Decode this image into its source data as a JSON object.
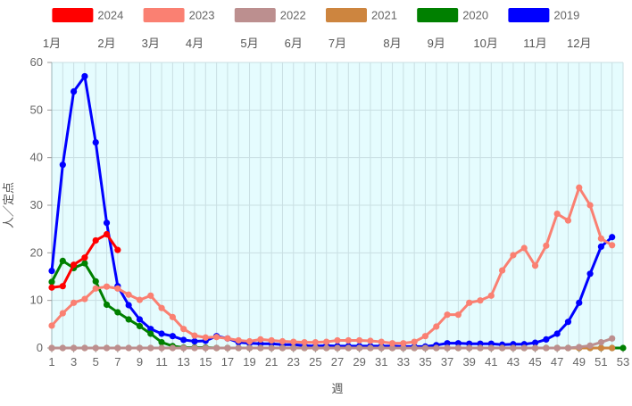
{
  "chart_data": {
    "type": "line",
    "xlabel": "週",
    "ylabel": "人／定点",
    "xlim": [
      1,
      53
    ],
    "ylim": [
      0,
      60
    ],
    "y_ticks": [
      0,
      10,
      20,
      30,
      40,
      50,
      60
    ],
    "x_ticks": [
      1,
      3,
      5,
      7,
      9,
      11,
      13,
      15,
      17,
      19,
      21,
      23,
      25,
      27,
      29,
      31,
      33,
      35,
      37,
      39,
      41,
      43,
      45,
      47,
      49,
      51,
      53
    ],
    "grid": true,
    "legend_position": "top",
    "month_labels": [
      {
        "label": "1月",
        "week": 1
      },
      {
        "label": "2月",
        "week": 6
      },
      {
        "label": "3月",
        "week": 10
      },
      {
        "label": "4月",
        "week": 14
      },
      {
        "label": "5月",
        "week": 19
      },
      {
        "label": "6月",
        "week": 23
      },
      {
        "label": "7月",
        "week": 27
      },
      {
        "label": "8月",
        "week": 32
      },
      {
        "label": "9月",
        "week": 36
      },
      {
        "label": "10月",
        "week": 40.5
      },
      {
        "label": "11月",
        "week": 45
      },
      {
        "label": "12月",
        "week": 49
      }
    ],
    "series": [
      {
        "name": "2024",
        "color": "#ff0000",
        "values": [
          12.7,
          13,
          17.5,
          19,
          22.6,
          23.9,
          20.6
        ]
      },
      {
        "name": "2023",
        "color": "#fa8072",
        "values": [
          4.7,
          7.3,
          9.5,
          10.3,
          12.5,
          12.9,
          12.5,
          11.2,
          10.1,
          11,
          8.4,
          6.5,
          4,
          2.6,
          2.2,
          2.3,
          2,
          1.6,
          1.4,
          1.8,
          1.6,
          1.4,
          1.3,
          1.2,
          1.2,
          1.3,
          1.6,
          1.6,
          1.6,
          1.5,
          1.3,
          1,
          1,
          1.3,
          2.5,
          4.5,
          7,
          7,
          9.5,
          10,
          11,
          16.3,
          19.5,
          21,
          17.3,
          21.5,
          28.2,
          26.8,
          33.7,
          30,
          23,
          21.6
        ]
      },
      {
        "name": "2022",
        "color": "#bc8f8f",
        "values": [
          0,
          0,
          0,
          0,
          0,
          0,
          0,
          0,
          0,
          0,
          0,
          0,
          0,
          0,
          0,
          0,
          0,
          0,
          0,
          0,
          0,
          0,
          0,
          0,
          0,
          0,
          0,
          0,
          0,
          0,
          0,
          0,
          0,
          0,
          0,
          0,
          0,
          0,
          0,
          0,
          0,
          0,
          0,
          0,
          0,
          0,
          0,
          0,
          0.2,
          0.5,
          1.2,
          2
        ]
      },
      {
        "name": "2021",
        "color": "#cd853f",
        "values": [
          0,
          0,
          0,
          0,
          0,
          0,
          0,
          0,
          0,
          0,
          0,
          0,
          0,
          0,
          0,
          0,
          0,
          0,
          0,
          0,
          0,
          0,
          0,
          0,
          0,
          0,
          0,
          0,
          0,
          0,
          0,
          0,
          0,
          0,
          0,
          0,
          0,
          0,
          0,
          0,
          0,
          0,
          0,
          0,
          0,
          0,
          0,
          0,
          0,
          0,
          0,
          0
        ]
      },
      {
        "name": "2020",
        "color": "#008000",
        "values": [
          13.9,
          18.3,
          16.8,
          17.8,
          14,
          9.1,
          7.5,
          6,
          4.6,
          3,
          1.2,
          0.4,
          0.1,
          0.1,
          0.1,
          0,
          0,
          0,
          0,
          0,
          0,
          0,
          0,
          0,
          0,
          0,
          0,
          0,
          0,
          0,
          0,
          0,
          0,
          0,
          0,
          0,
          0,
          0,
          0,
          0,
          0,
          0,
          0,
          0,
          0,
          0,
          0,
          0,
          0,
          0,
          0,
          0,
          0
        ]
      },
      {
        "name": "2019",
        "color": "#0000ff",
        "values": [
          16.2,
          38.5,
          53.9,
          57.1,
          43.2,
          26.3,
          13,
          9,
          6,
          4,
          3,
          2.5,
          1.7,
          1.4,
          1.5,
          2.5,
          2,
          1.2,
          1,
          0.9,
          0.9,
          0.7,
          0.7,
          0.5,
          0.4,
          0.5,
          0.4,
          0.4,
          0.4,
          0.4,
          0.4,
          0.4,
          0.3,
          0.3,
          0.3,
          0.6,
          1,
          1,
          0.9,
          0.9,
          0.9,
          0.7,
          0.8,
          0.8,
          1.1,
          1.8,
          3,
          5.5,
          9.5,
          15.6,
          21.3,
          23.3
        ]
      }
    ]
  }
}
